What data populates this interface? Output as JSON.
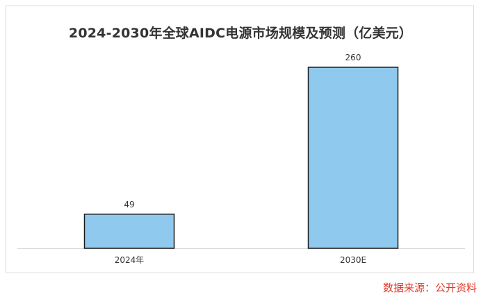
{
  "chart_data": {
    "type": "bar",
    "title": "2024-2030年全球AIDC电源市场规模及预测（亿美元）",
    "categories": [
      "2024年",
      "2030E"
    ],
    "values": [
      49,
      260
    ],
    "ylim": [
      0,
      260
    ],
    "xlabel": "",
    "ylabel": "",
    "grid": false,
    "legend": "none",
    "bar_color": "#8fcaee",
    "bar_edge_color": "#1a1a1a",
    "data_labels": [
      "49",
      "260"
    ]
  },
  "source": {
    "text": "数据来源：公开资料",
    "color": "#e23a2a"
  }
}
